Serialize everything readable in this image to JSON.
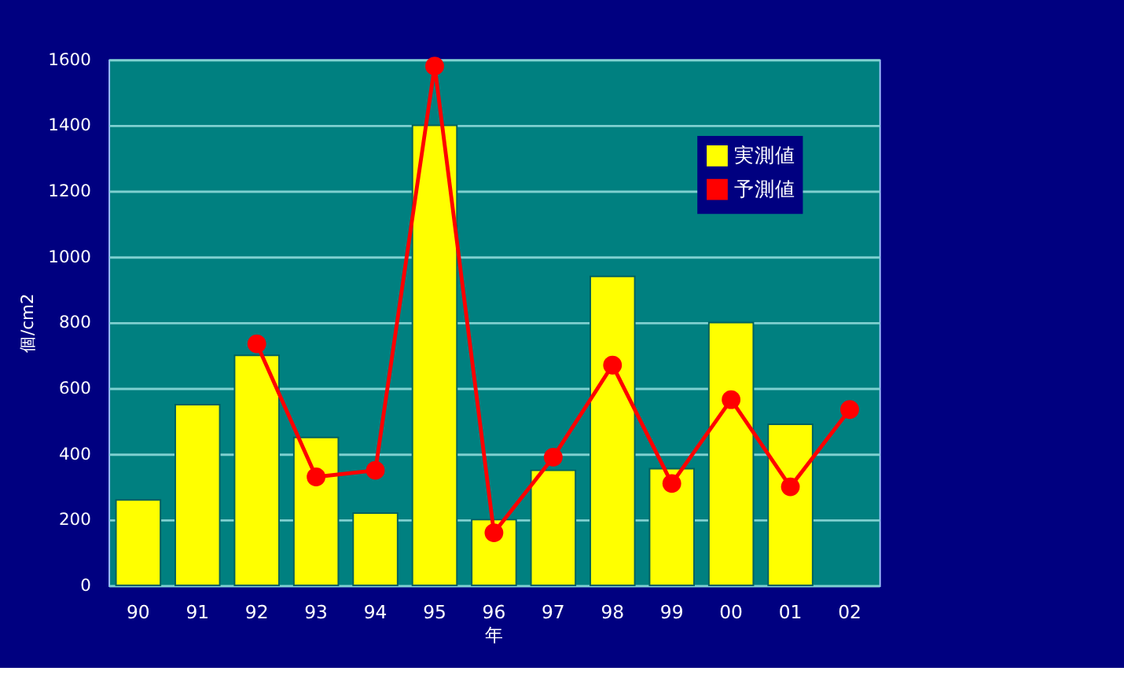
{
  "chart_data": {
    "type": "bar",
    "xlabel": "年",
    "ylabel": "個/cm2",
    "categories": [
      "90",
      "91",
      "92",
      "93",
      "94",
      "95",
      "96",
      "97",
      "98",
      "99",
      "00",
      "01",
      "02"
    ],
    "series": [
      {
        "name": "実測値",
        "color": "#ffff00",
        "values": [
          260,
          550,
          700,
          450,
          220,
          1400,
          200,
          350,
          940,
          355,
          800,
          490,
          null
        ]
      },
      {
        "name": "予測値",
        "type": "line",
        "color": "#ff0000",
        "marker": "circle",
        "values": [
          null,
          null,
          735,
          330,
          350,
          1580,
          160,
          390,
          670,
          310,
          565,
          300,
          535
        ]
      }
    ],
    "ylim": [
      0,
      1600
    ],
    "yticks": [
      0,
      200,
      400,
      600,
      800,
      1000,
      1200,
      1400,
      1600
    ],
    "grid": "y",
    "legend": "top right"
  }
}
